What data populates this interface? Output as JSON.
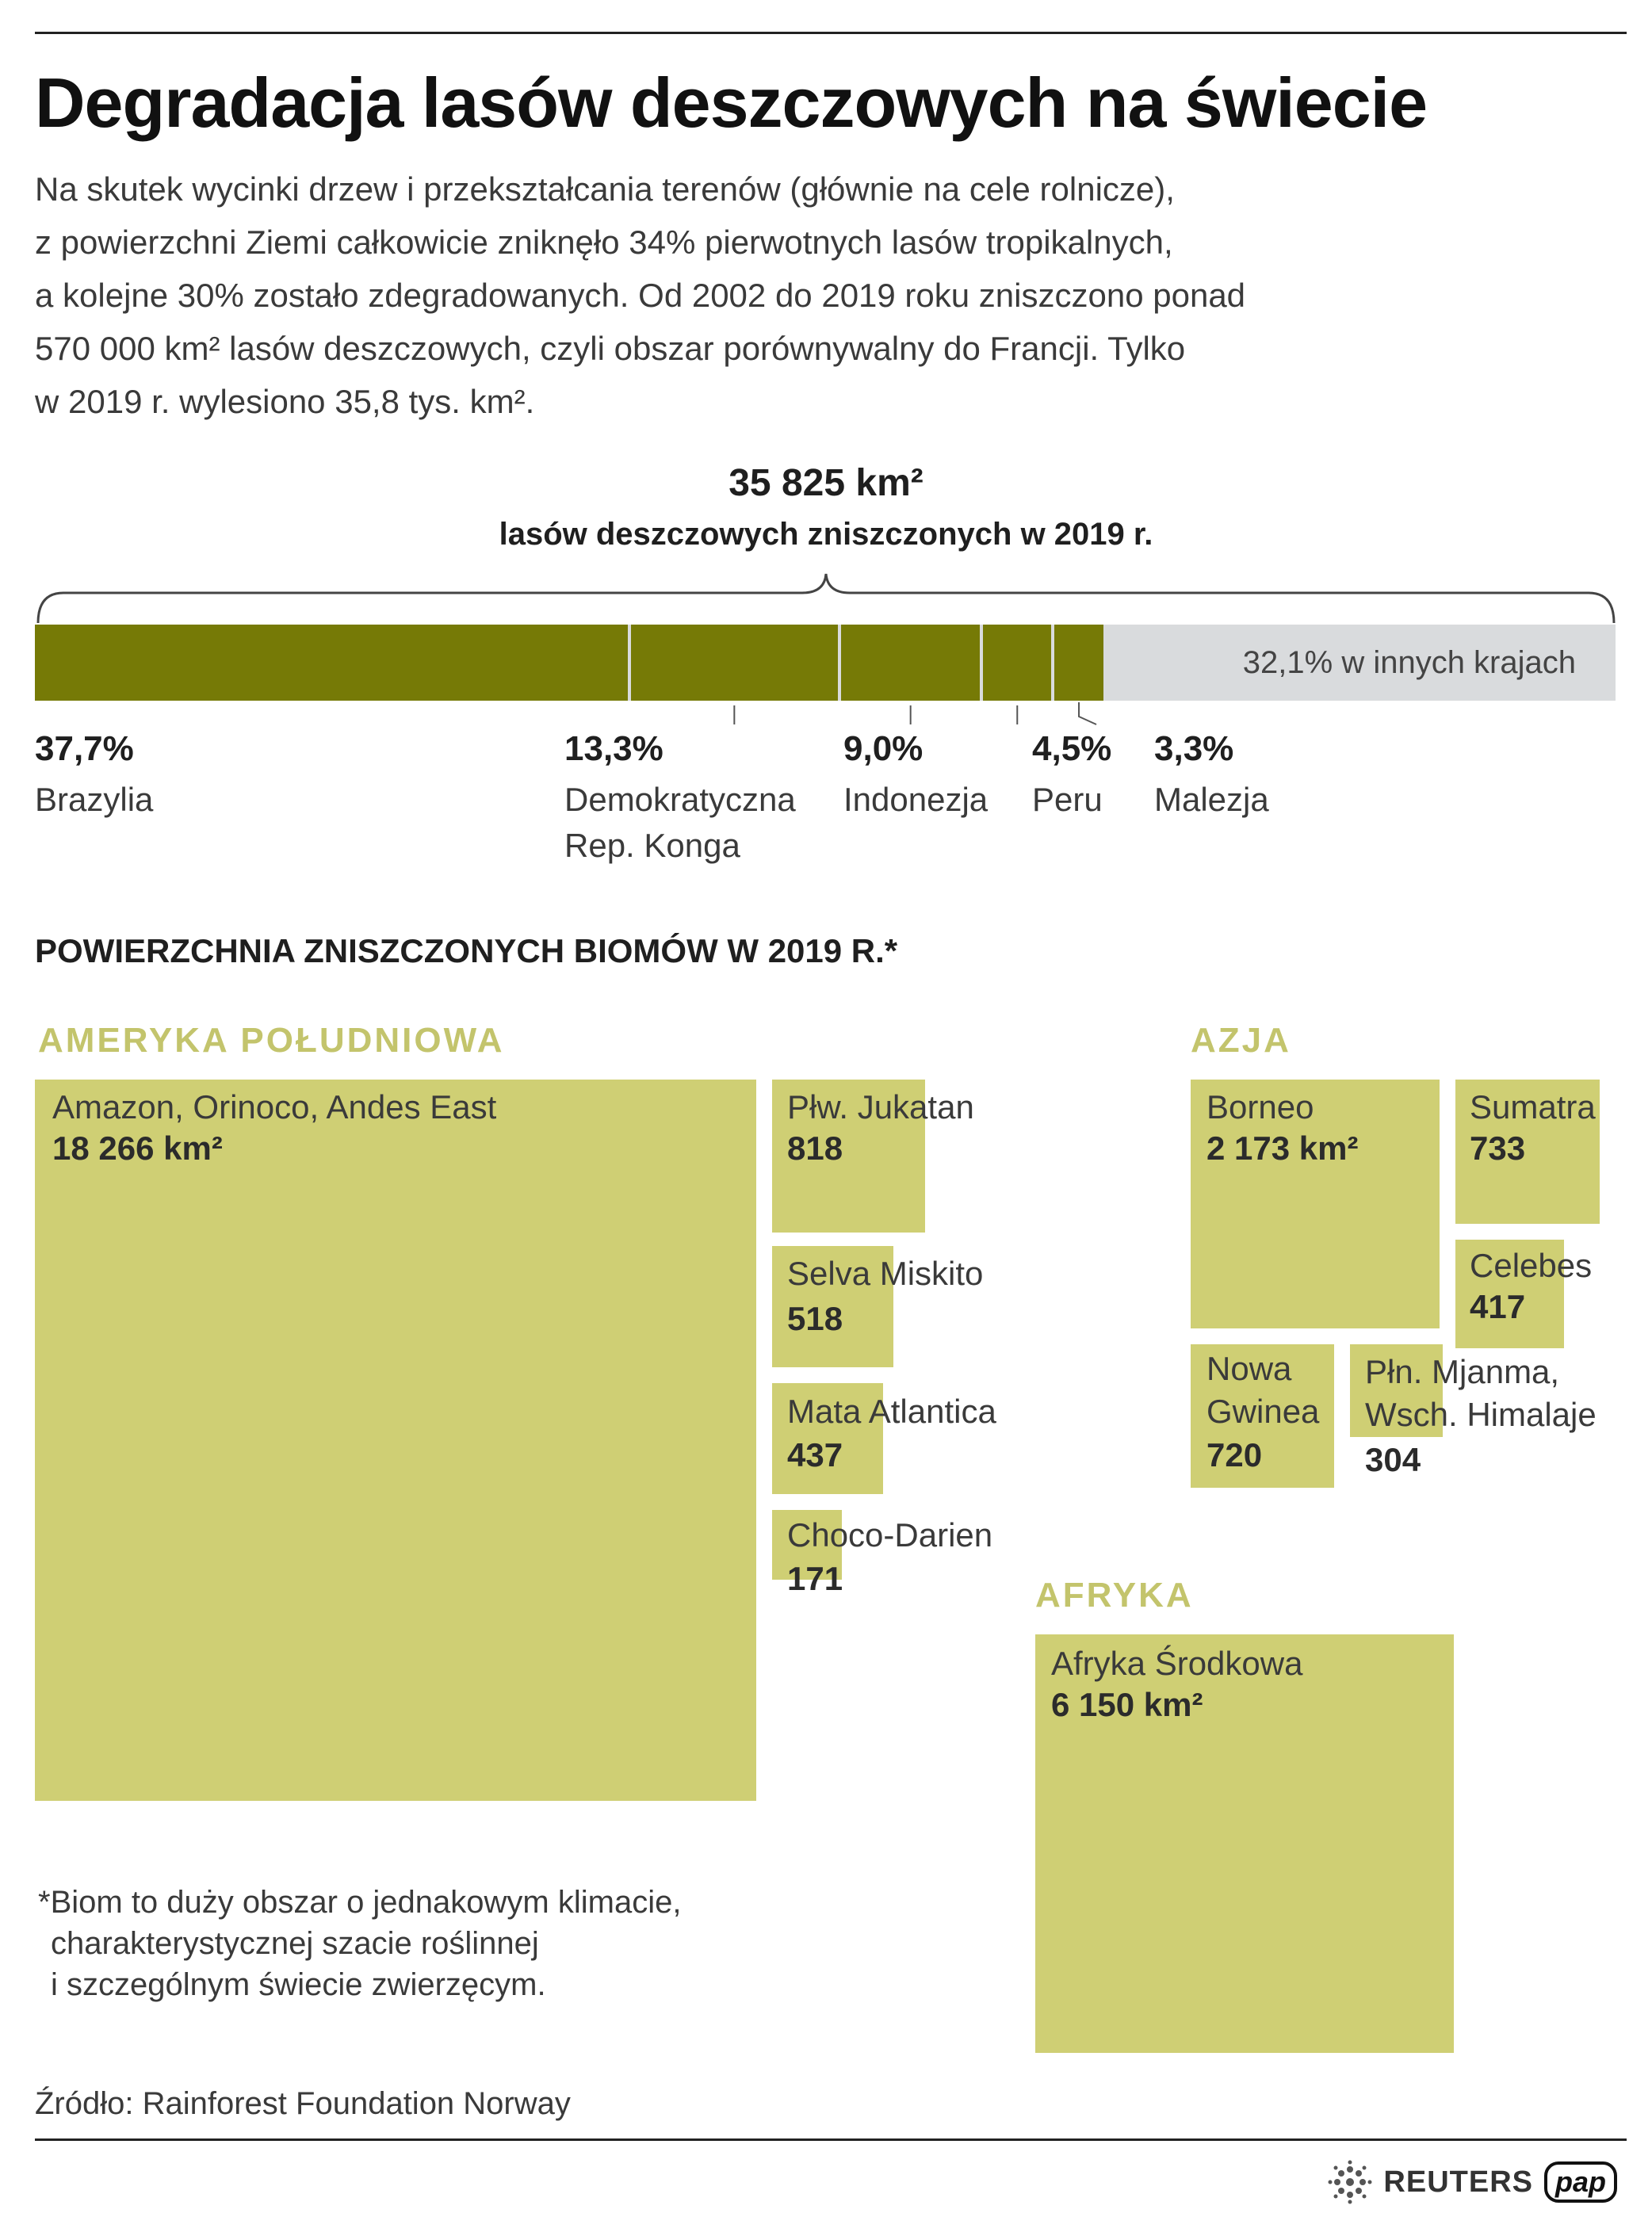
{
  "title": "Degradacja lasów deszczowych na świecie",
  "intro": [
    "Na skutek wycinki drzew i przekształcania terenów (głównie na cele rolnicze),",
    "z powierzchni Ziemi całkowicie zniknęło 34% pierwotnych lasów tropikalnych,",
    "a kolejne 30% zostało zdegradowanych. Od 2002 do 2019 roku zniszczono ponad",
    "570 000 km² lasów deszczowych, czyli obszar porównywalny do Francji. Tylko",
    "w 2019 r. wylesiono 35,8 tys. km²."
  ],
  "chart_data": [
    {
      "type": "bar",
      "title": "35 825 km²",
      "subtitle": "lasów deszczowych zniszczonych w 2019 r.",
      "stacked": true,
      "unit": "%",
      "categories": [
        "Brazylia",
        "Demokratyczna Rep. Konga",
        "Indonezja",
        "Peru",
        "Malezja",
        "w innych krajach"
      ],
      "values": [
        37.7,
        13.3,
        9.0,
        4.5,
        3.3,
        32.1
      ],
      "value_labels": [
        "37,7%",
        "13,3%",
        "9,0%",
        "4,5%",
        "3,3%",
        "32,1%"
      ],
      "other_label": "32,1% w innych krajach",
      "colors": {
        "country": "#767a06",
        "other": "#d9dbdd"
      }
    },
    {
      "type": "treemap",
      "title": "POWIERZCHNIA ZNISZCZONYCH BIOMÓW W 2019 R.*",
      "unit": "km²",
      "groups": [
        {
          "region": "AMERYKA POŁUDNIOWA",
          "items": [
            {
              "name": "Amazon, Orinoco, Andes East",
              "value": 18266,
              "label": "18 266 km²"
            },
            {
              "name": "Płw. Jukatan",
              "value": 818,
              "label": "818"
            },
            {
              "name": "Selva Miskito",
              "value": 518,
              "label": "518"
            },
            {
              "name": "Mata Atlantica",
              "value": 437,
              "label": "437"
            },
            {
              "name": "Choco-Darien",
              "value": 171,
              "label": "171"
            }
          ]
        },
        {
          "region": "AZJA",
          "items": [
            {
              "name": "Borneo",
              "value": 2173,
              "label": "2 173 km²"
            },
            {
              "name": "Sumatra",
              "value": 733,
              "label": "733"
            },
            {
              "name": "Celebes",
              "value": 417,
              "label": "417"
            },
            {
              "name": "Nowa Gwinea",
              "value": 720,
              "label": "720"
            },
            {
              "name": "Płn. Mjanma, Wsch. Himalaje",
              "value": 304,
              "label": "304"
            }
          ]
        },
        {
          "region": "AFRYKA",
          "items": [
            {
              "name": "Afryka Środkowa",
              "value": 6150,
              "label": "6 150 km²"
            }
          ]
        }
      ],
      "colors": {
        "box": "#cfcf74",
        "region": "#c3c46c"
      }
    }
  ],
  "labels": {
    "nowa_gwinea": [
      "Nowa",
      "Gwinea"
    ],
    "mjanma": [
      "Płn. Mjanma,",
      "Wsch. Himalaje"
    ],
    "drc": [
      "Demokratyczna",
      "Rep. Konga"
    ]
  },
  "footnote": [
    "*Biom to duży obszar o jednakowym klimacie,",
    "charakterystycznej szacie roślinnej",
    "i szczególnym świecie zwierzęcym."
  ],
  "source": "Źródło: Rainforest Foundation Norway",
  "logos": {
    "reuters": "REUTERS",
    "pap": "pap"
  }
}
